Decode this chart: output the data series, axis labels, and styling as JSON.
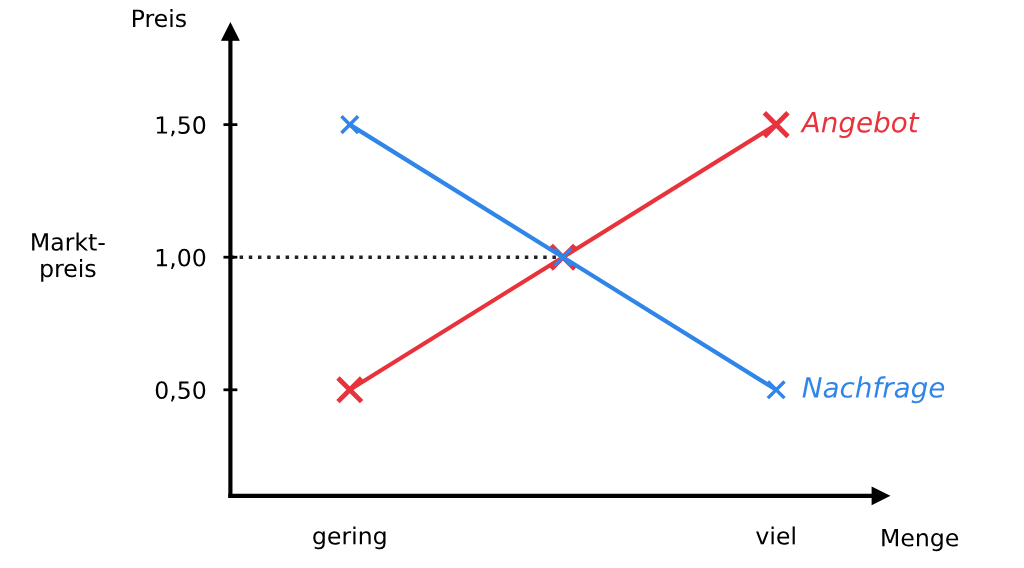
{
  "chart_data": {
    "type": "line",
    "xlabel": "Menge",
    "ylabel": "Preis",
    "categories": [
      "gering",
      null,
      "viel"
    ],
    "series": [
      {
        "name": "Angebot",
        "color": "#e8323c",
        "values": [
          0.5,
          1.0,
          1.5
        ]
      },
      {
        "name": "Nachfrage",
        "color": "#2f86e8",
        "values": [
          1.5,
          1.0,
          0.5
        ]
      }
    ],
    "ylim": [
      0.1,
      1.85
    ],
    "yticks": [
      {
        "value": 0.5,
        "label": "0,50"
      },
      {
        "value": 1.0,
        "label": "1,00"
      },
      {
        "value": 1.5,
        "label": "1,50"
      }
    ],
    "ref_lines": [
      {
        "axis": "y",
        "value": 1.0,
        "label": "Markt-\npreis",
        "color": "#222222",
        "line_style": "dotted"
      }
    ],
    "marker": "cross",
    "line_style": "solid",
    "grid": false,
    "legend": false
  }
}
